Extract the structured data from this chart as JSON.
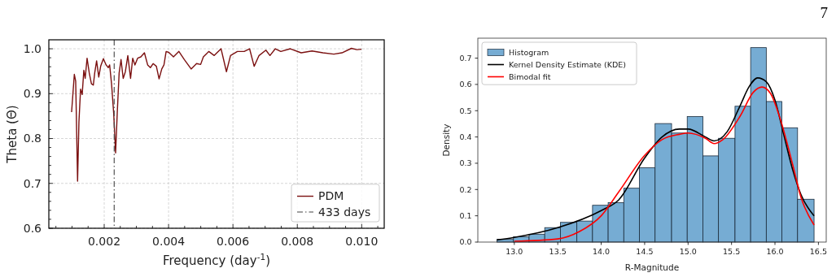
{
  "chart_data": [
    {
      "type": "line",
      "xlabel": "Frequency (day$^{-1}$)",
      "ylabel": "Theta (Θ)",
      "xlim": [
        0.00028,
        0.0107
      ],
      "ylim": [
        0.6,
        1.02
      ],
      "xticks": [
        {
          "value": 0.0005,
          "label": null
        },
        {
          "value": 0.001,
          "label": null
        },
        {
          "value": 0.0015,
          "label": null
        },
        0.002,
        {
          "value": 0.0025,
          "label": null
        },
        {
          "value": 0.003,
          "label": null
        },
        {
          "value": 0.0035,
          "label": null
        },
        0.004,
        {
          "value": 0.0045,
          "label": null
        },
        {
          "value": 0.005,
          "label": null
        },
        {
          "value": 0.0055,
          "label": null
        },
        0.006,
        {
          "value": 0.0065,
          "label": null
        },
        {
          "value": 0.007,
          "label": null
        },
        {
          "value": 0.0075,
          "label": null
        },
        0.008,
        {
          "value": 0.0085,
          "label": null
        },
        {
          "value": 0.009,
          "label": null
        },
        {
          "value": 0.0095,
          "label": null
        },
        {
          "value": 0.01,
          "label": "0.010"
        },
        {
          "value": 0.0105,
          "label": null
        }
      ],
      "yticks": [
        0.6,
        {
          "value": 0.62,
          "label": null
        },
        {
          "value": 0.64,
          "label": null
        },
        {
          "value": 0.66,
          "label": null
        },
        {
          "value": 0.68,
          "label": null
        },
        0.7,
        {
          "value": 0.72,
          "label": null
        },
        {
          "value": 0.74,
          "label": null
        },
        {
          "value": 0.76,
          "label": null
        },
        {
          "value": 0.78,
          "label": null
        },
        0.8,
        {
          "value": 0.82,
          "label": null
        },
        {
          "value": 0.84,
          "label": null
        },
        {
          "value": 0.86,
          "label": null
        },
        {
          "value": 0.88,
          "label": null
        },
        0.9,
        {
          "value": 0.92,
          "label": null
        },
        {
          "value": 0.94,
          "label": null
        },
        {
          "value": 0.96,
          "label": null
        },
        {
          "value": 0.98,
          "label": null
        },
        {
          "value": 1,
          "label": "1.0"
        }
      ],
      "grid": true,
      "legend": "bottom right",
      "ref_lines": [
        {
          "axis": "x",
          "value": 0.00231,
          "label": "433 days",
          "color": "#444444",
          "line_style": "dashdot"
        }
      ],
      "series": [
        {
          "name": "PDM",
          "color": "#7b1010",
          "x": [
            0.000987,
            0.001072,
            0.001114,
            0.001173,
            0.001215,
            0.001266,
            0.001316,
            0.001367,
            0.001409,
            0.001468,
            0.001536,
            0.001603,
            0.001662,
            0.001705,
            0.001764,
            0.001831,
            0.00189,
            0.001975,
            0.002059,
            0.002127,
            0.002169,
            0.002228,
            0.002295,
            0.002354,
            0.002405,
            0.002464,
            0.002523,
            0.00259,
            0.002658,
            0.002734,
            0.002819,
            0.002886,
            0.002954,
            0.003038,
            0.003139,
            0.00325,
            0.00335,
            0.003435,
            0.00352,
            0.003621,
            0.003705,
            0.003789,
            0.003857,
            0.003924,
            0.004008,
            0.004152,
            0.004321,
            0.00449,
            0.004701,
            0.00487,
            0.004996,
            0.005081,
            0.005251,
            0.005418,
            0.005631,
            0.005798,
            0.005925,
            0.006137,
            0.006348,
            0.006517,
            0.006659,
            0.006811,
            0.007024,
            0.00715,
            0.007317,
            0.007487,
            0.007783,
            0.00812,
            0.008457,
            0.008796,
            0.009133,
            0.009386,
            0.009682,
            0.009849,
            0.009993
          ],
          "values": [
            0.859,
            0.943,
            0.928,
            0.705,
            0.837,
            0.91,
            0.898,
            0.952,
            0.934,
            0.979,
            0.946,
            0.922,
            0.919,
            0.946,
            0.973,
            0.937,
            0.961,
            0.978,
            0.964,
            0.958,
            0.964,
            0.922,
            0.856,
            0.768,
            0.856,
            0.946,
            0.976,
            0.934,
            0.949,
            0.985,
            0.934,
            0.979,
            0.964,
            0.979,
            0.982,
            0.991,
            0.964,
            0.958,
            0.967,
            0.961,
            0.933,
            0.955,
            0.964,
            0.994,
            0.992,
            0.982,
            0.994,
            0.976,
            0.955,
            0.967,
            0.965,
            0.982,
            0.994,
            0.985,
            1.0,
            0.949,
            0.985,
            0.994,
            0.994,
            1.0,
            0.961,
            0.985,
            0.997,
            0.985,
            1.0,
            0.994,
            1.0,
            0.991,
            0.995,
            0.991,
            0.988,
            0.991,
            1.001,
            0.998,
            0.999
          ]
        }
      ]
    },
    {
      "type": "histogram",
      "xlabel": "R-Magnitude",
      "ylabel": "Density",
      "xlim": [
        12.58,
        16.59
      ],
      "ylim": [
        0,
        0.776
      ],
      "xticks": [
        {
          "value": 13,
          "label": "13.0"
        },
        13.5,
        {
          "value": 14,
          "label": "14.0"
        },
        14.5,
        {
          "value": 15,
          "label": "15.0"
        },
        15.5,
        {
          "value": 16,
          "label": "16.0"
        },
        16.5
      ],
      "yticks": [
        {
          "value": 0,
          "label": "0.0"
        },
        0.1,
        0.2,
        0.3,
        0.4,
        0.5,
        0.6,
        0.7
      ],
      "legend": "top left",
      "annotations": [
        "7"
      ],
      "bins": [
        12.8,
        12.99,
        13.17,
        13.35,
        13.53,
        13.72,
        13.9,
        14.08,
        14.26,
        14.44,
        14.62,
        14.81,
        14.99,
        15.17,
        15.35,
        15.54,
        15.72,
        15.9,
        16.08,
        16.26,
        16.45
      ],
      "series": [
        {
          "name": "Histogram",
          "type": "histogram",
          "color": "#76acd3",
          "values": [
            0.01,
            0.02,
            0.03,
            0.055,
            0.075,
            0.08,
            0.14,
            0.15,
            0.205,
            0.283,
            0.451,
            0.415,
            0.478,
            0.328,
            0.395,
            0.517,
            0.74,
            0.535,
            0.435,
            0.163
          ]
        },
        {
          "name": "Kernel Density Estimate (KDE)",
          "type": "line",
          "color": "#000000",
          "x": [
            12.8,
            13.0,
            13.5,
            14.0,
            14.2,
            14.5,
            14.7,
            14.9,
            15.0,
            15.2,
            15.3,
            15.45,
            15.6,
            15.7,
            15.8,
            15.9,
            16.0,
            16.1,
            16.2,
            16.3,
            16.45
          ],
          "values": [
            0.008,
            0.018,
            0.055,
            0.12,
            0.16,
            0.32,
            0.4,
            0.43,
            0.43,
            0.4,
            0.385,
            0.42,
            0.52,
            0.59,
            0.625,
            0.61,
            0.54,
            0.41,
            0.28,
            0.18,
            0.1
          ]
        },
        {
          "name": "Bimodal fit",
          "type": "line",
          "color": "#ff0000",
          "x": [
            13.0,
            13.5,
            13.75,
            14.0,
            14.2,
            14.5,
            14.7,
            14.9,
            15.0,
            15.2,
            15.3,
            15.4,
            15.6,
            15.75,
            15.85,
            15.95,
            16.05,
            16.2,
            16.3,
            16.45
          ],
          "values": [
            0.003,
            0.012,
            0.04,
            0.1,
            0.19,
            0.33,
            0.39,
            0.41,
            0.415,
            0.395,
            0.375,
            0.39,
            0.48,
            0.57,
            0.59,
            0.565,
            0.48,
            0.3,
            0.17,
            0.065
          ]
        }
      ]
    }
  ]
}
